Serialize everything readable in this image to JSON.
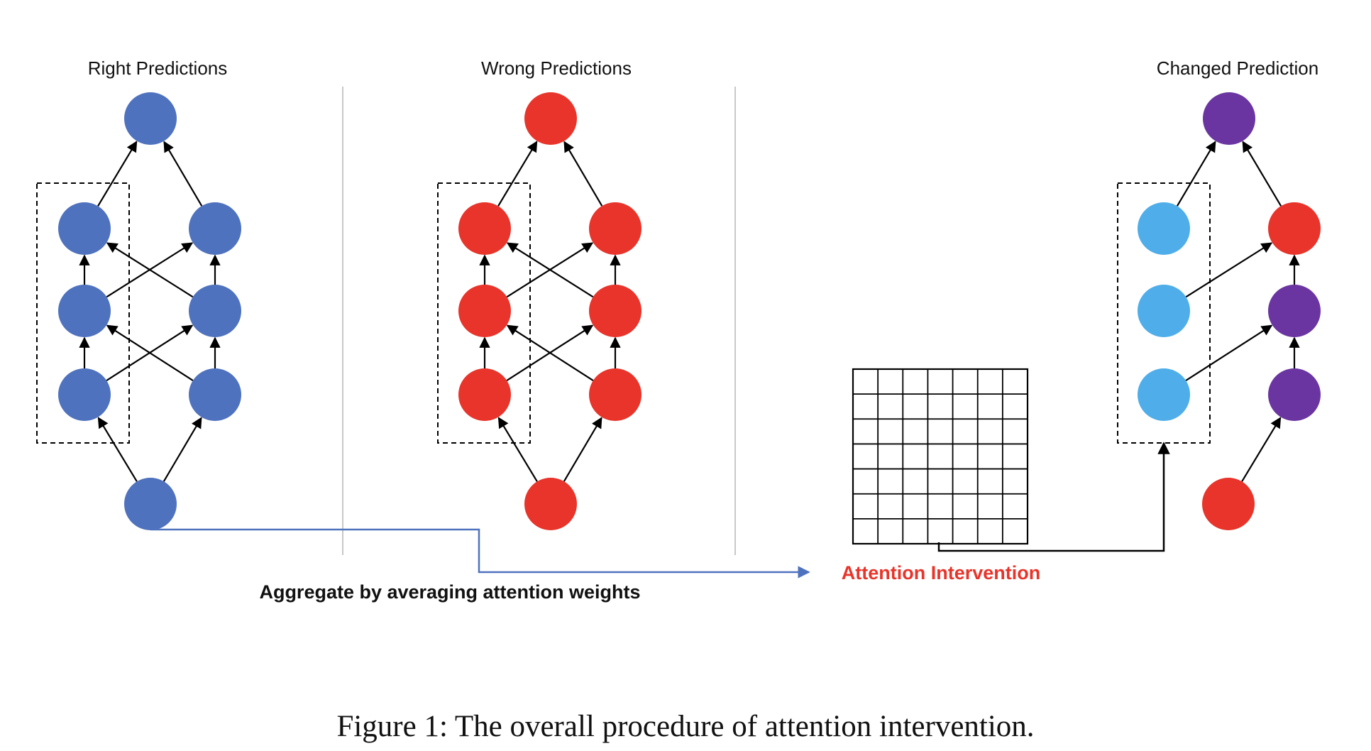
{
  "figure": {
    "caption": "Figure 1: The overall procedure of attention intervention."
  },
  "panels": {
    "right": {
      "title": "Right Predictions"
    },
    "wrong": {
      "title": "Wrong Predictions"
    },
    "changed": {
      "title": "Changed Prediction"
    }
  },
  "labels": {
    "aggregate": "Aggregate by averaging attention weights",
    "intervention": "Attention Intervention"
  },
  "matrix": {
    "rows": 7,
    "cols": 7
  },
  "colors": {
    "blue": "#4F72BE",
    "red": "#E8342A",
    "purple": "#6A35A0",
    "light_blue": "#4FAEE9",
    "arrow": "#000000",
    "flow_line": "#4F72BE",
    "intervention_text": "#E8342A",
    "divider": "#C8C8C8"
  },
  "node_colors": {
    "right": {
      "output": "blue",
      "left_column": [
        "blue",
        "blue",
        "blue"
      ],
      "right_column": [
        "blue",
        "blue",
        "blue"
      ],
      "input": "blue"
    },
    "wrong": {
      "output": "red",
      "left_column": [
        "red",
        "red",
        "red"
      ],
      "right_column": [
        "red",
        "red",
        "red"
      ],
      "input": "red"
    },
    "changed": {
      "output": "purple",
      "left_column": [
        "light_blue",
        "light_blue",
        "light_blue"
      ],
      "right_column": [
        "purple",
        "purple",
        "red"
      ],
      "input": "red"
    }
  }
}
